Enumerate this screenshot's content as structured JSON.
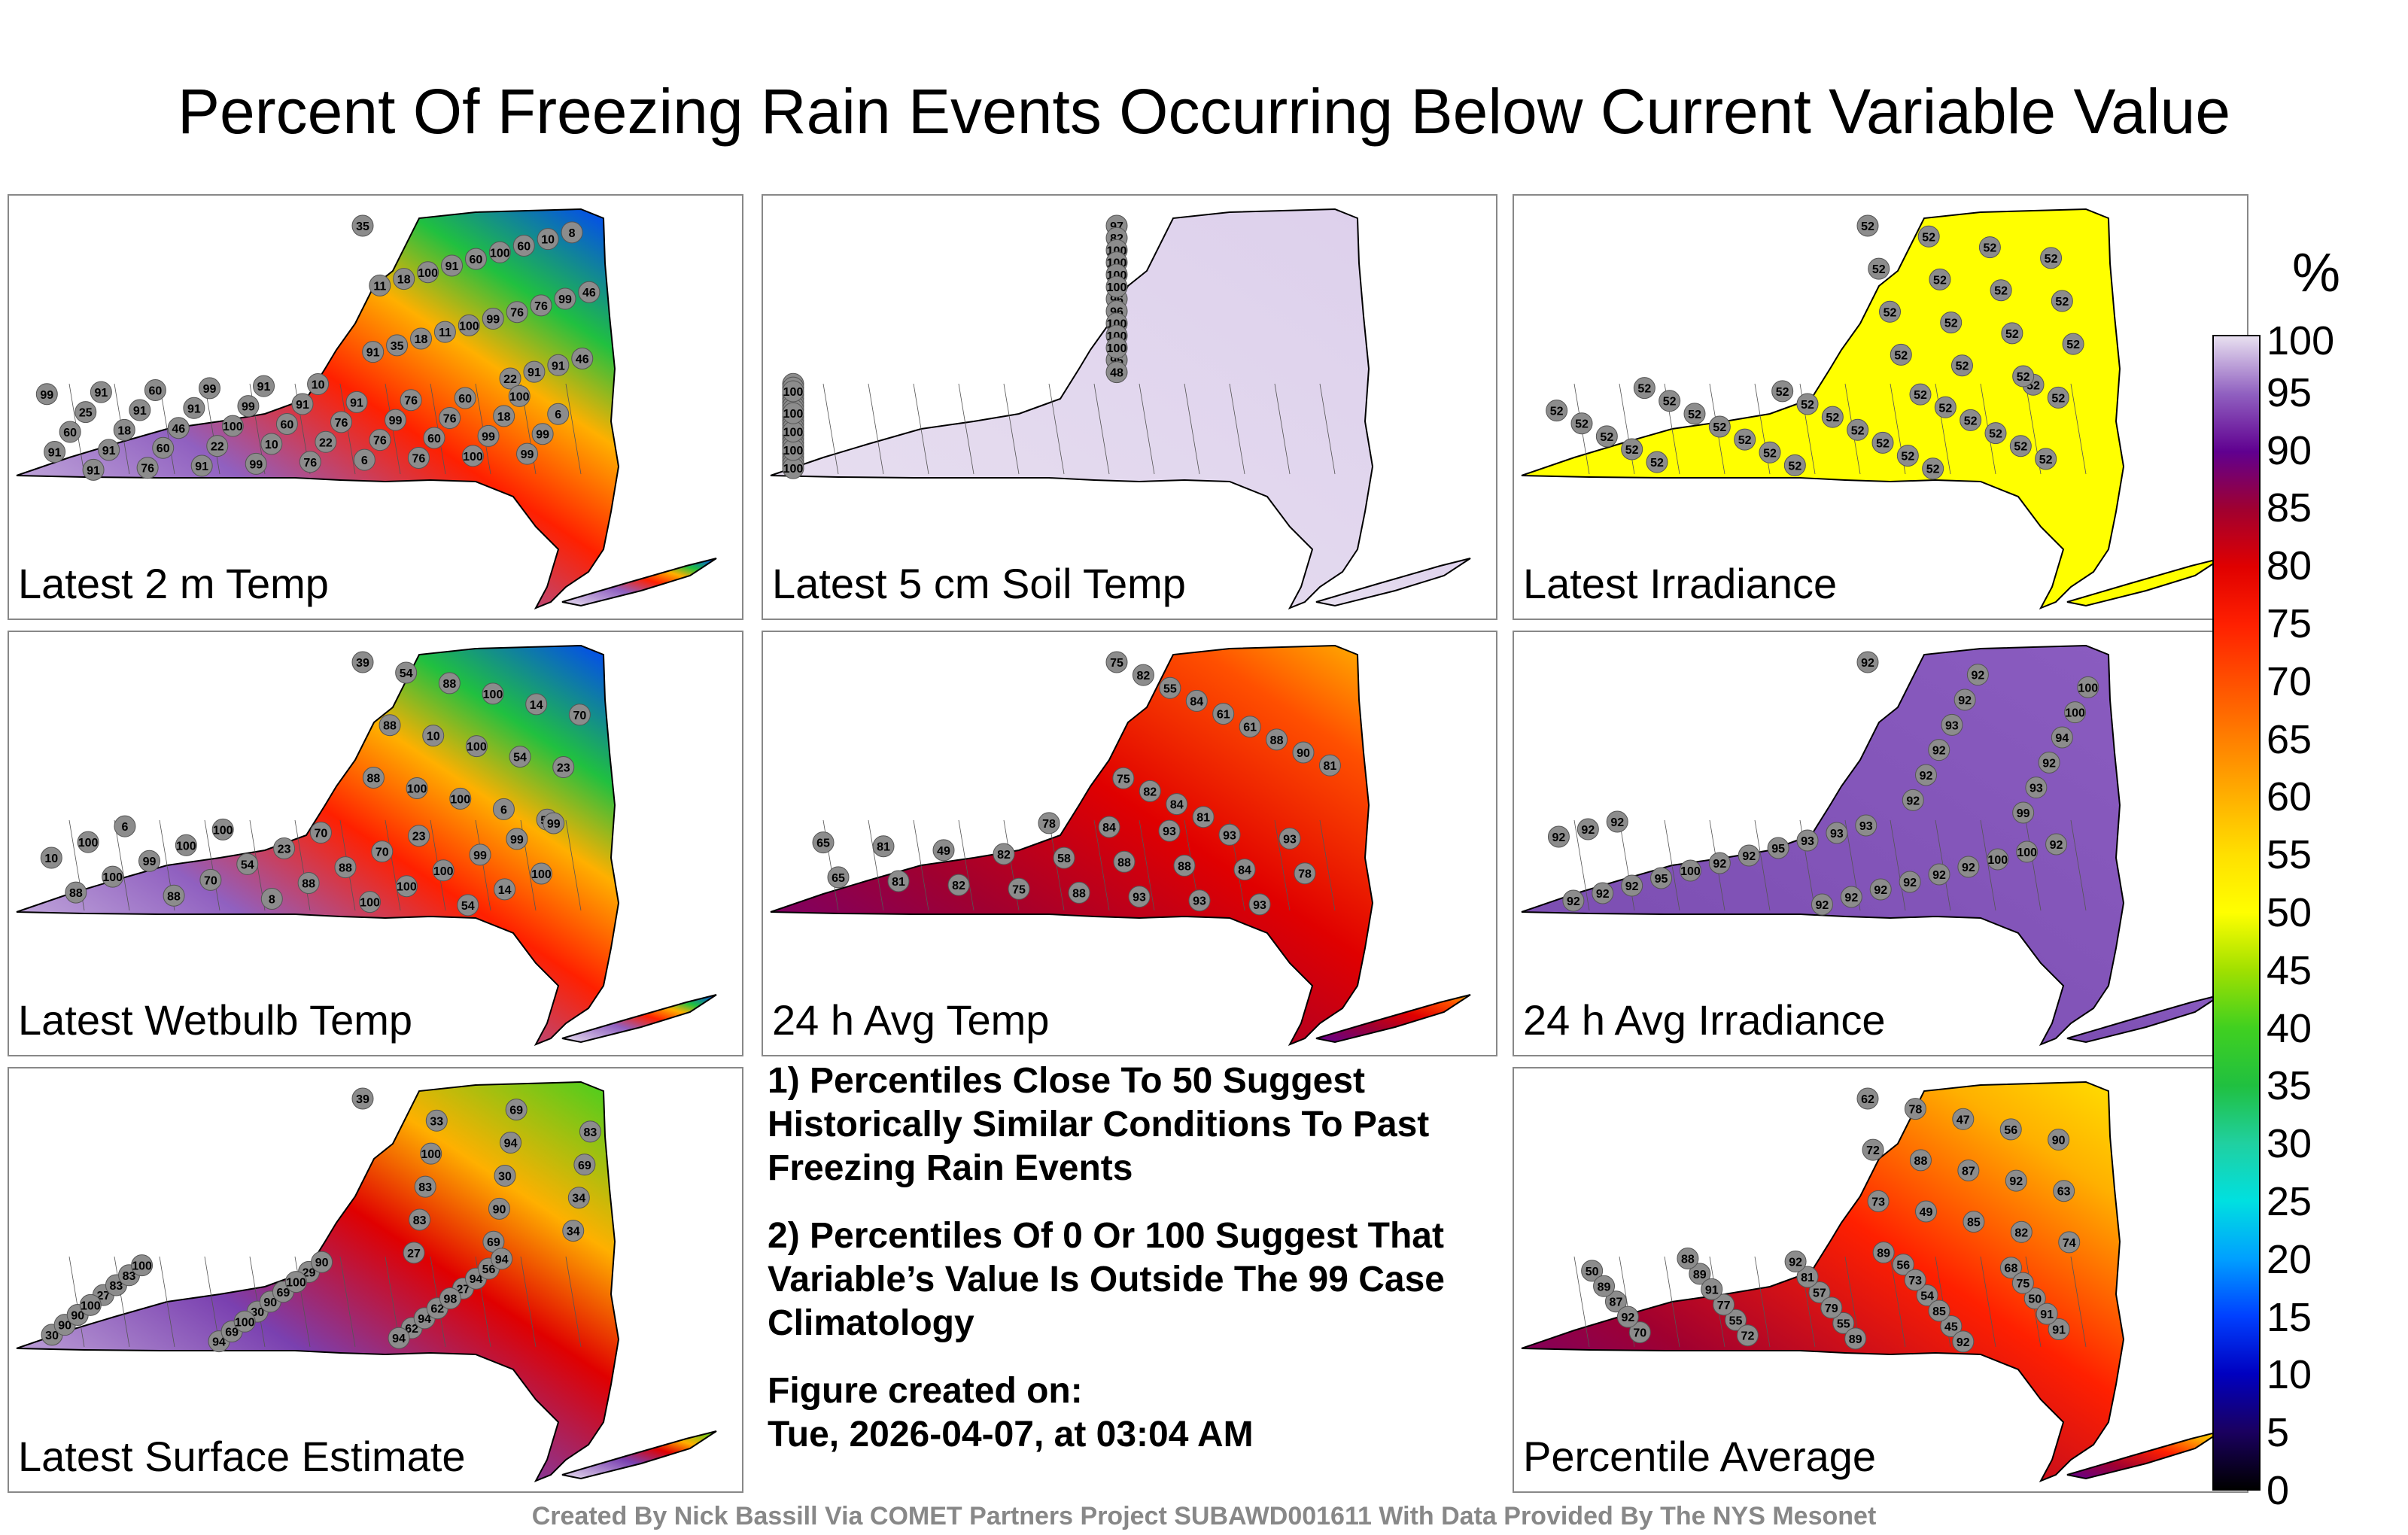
{
  "title": "Percent Of Freezing Rain Events Occurring Below Current Variable Value",
  "colorbar": {
    "unit": "%",
    "ticks": [
      "100",
      "95",
      "90",
      "85",
      "80",
      "75",
      "70",
      "65",
      "60",
      "55",
      "50",
      "45",
      "40",
      "35",
      "30",
      "25",
      "20",
      "15",
      "10",
      "5",
      "0"
    ]
  },
  "panels": [
    {
      "label": "Latest 2 m Temp",
      "fill": "mixed-cold-northeast"
    },
    {
      "label": "Latest 5 cm Soil Temp",
      "fill": "uniform-high"
    },
    {
      "label": "Latest Irradiance",
      "fill": "uniform-yellow"
    },
    {
      "label": "Latest Wetbulb Temp",
      "fill": "mixed-cold-northeast"
    },
    {
      "label": "24 h Avg Temp",
      "fill": "warm-red"
    },
    {
      "label": "24 h Avg Irradiance",
      "fill": "uniform-purple"
    },
    {
      "label": "Latest Surface Estimate",
      "fill": "mixed-green-north"
    },
    {
      "label": "Percentile Average",
      "fill": "orange-red"
    }
  ],
  "notes": {
    "line1": "1) Percentiles Close To 50 Suggest Historically Similar Conditions To Past Freezing Rain Events",
    "line2": "2) Percentiles Of 0 Or 100 Suggest That Variable’s Value Is Outside The 99 Case Climatology",
    "created_label": "Figure created on:",
    "created_value": "Tue, 2026-04-07, at 03:04 AM"
  },
  "credit": "Created By Nick Bassill Via COMET Partners Project SUBAWD001611 With Data Provided By The NYS Mesonet",
  "chart_data": {
    "type": "heatmap",
    "title": "Percent Of Freezing Rain Events Occurring Below Current Variable Value",
    "colorbar_range": [
      0,
      100
    ],
    "colorbar_unit": "%",
    "panels": [
      {
        "name": "Latest 2 m Temp",
        "station_values": [
          35,
          22,
          25,
          22,
          18,
          76,
          46,
          60,
          11,
          8,
          10,
          6,
          10,
          11,
          6,
          18,
          76,
          18,
          10,
          22,
          18,
          91,
          46,
          76,
          60,
          91,
          35,
          60,
          60,
          76,
          99,
          99,
          99,
          99,
          91,
          91,
          100,
          91,
          99,
          60,
          76,
          91,
          99,
          99,
          46,
          60,
          91,
          76,
          91,
          76,
          76,
          60,
          91,
          91,
          91,
          99,
          60,
          99,
          99,
          91,
          76,
          91,
          91,
          100,
          100,
          100,
          100,
          100
        ]
      },
      {
        "name": "Latest 5 cm Soil Temp",
        "station_values": [
          97,
          96,
          95,
          95,
          91,
          96,
          100,
          82,
          97,
          97,
          48,
          96,
          96,
          100,
          100,
          100,
          100,
          100,
          100,
          100,
          100,
          100,
          96,
          100,
          100,
          100,
          100,
          100,
          100,
          100,
          100,
          100,
          100,
          100,
          100,
          100,
          100
        ]
      },
      {
        "name": "Latest Irradiance",
        "station_values": [
          52,
          52,
          52,
          52,
          52,
          52,
          52,
          52,
          52,
          52,
          52,
          52,
          52,
          52,
          52,
          52,
          52,
          52,
          52,
          52,
          52,
          52,
          52,
          52,
          52,
          52,
          52,
          52,
          52,
          52,
          52,
          52,
          52,
          52,
          52,
          52,
          52,
          52,
          52,
          52,
          52,
          52
        ]
      },
      {
        "name": "Latest Wetbulb Temp",
        "station_values": [
          39,
          23,
          23,
          88,
          8,
          10,
          6,
          10,
          14,
          14,
          6,
          23,
          70,
          54,
          88,
          99,
          100,
          100,
          100,
          100,
          99,
          88,
          70,
          54,
          70,
          88,
          88,
          100,
          100,
          100,
          54,
          54,
          70,
          54,
          88,
          88,
          99,
          99,
          100,
          100,
          100,
          100,
          100
        ]
      },
      {
        "name": "24 h Avg Temp",
        "station_values": [
          75,
          65,
          82,
          81,
          55,
          49,
          84,
          82,
          61,
          58,
          61,
          88,
          88,
          88,
          90,
          84,
          81,
          78,
          75,
          65,
          82,
          81,
          84,
          82,
          81,
          75,
          78,
          88,
          84,
          93,
          93,
          93,
          93,
          93,
          93
        ]
      },
      {
        "name": "24 h Avg Irradiance",
        "station_values": [
          92,
          92,
          92,
          92,
          92,
          92,
          92,
          92,
          95,
          92,
          100,
          92,
          92,
          93,
          92,
          92,
          95,
          92,
          93,
          92,
          93,
          92,
          93,
          92,
          99,
          92,
          93,
          92,
          92,
          92,
          94,
          100,
          100,
          100,
          100,
          92
        ]
      },
      {
        "name": "Latest Surface Estimate",
        "station_values": [
          39,
          34,
          27,
          62,
          30,
          29,
          30,
          33,
          27,
          27,
          30,
          34,
          94,
          94,
          94,
          90,
          90,
          94,
          83,
          83,
          90,
          69,
          56,
          62,
          69,
          69,
          69,
          69,
          83,
          83,
          90,
          83,
          94,
          98,
          94,
          90,
          100,
          100,
          100,
          100,
          100
        ]
      },
      {
        "name": "Percentile Average",
        "station_values": [
          62,
          63,
          56,
          57,
          55,
          78,
          73,
          68,
          54,
          55,
          47,
          49,
          50,
          50,
          45,
          56,
          85,
          89,
          87,
          91,
          90,
          82,
          81,
          77,
          70,
          72,
          74,
          73,
          79,
          72,
          88,
          89,
          75,
          85,
          89,
          87,
          88,
          89,
          91,
          92,
          92,
          92,
          91,
          92
        ]
      }
    ]
  }
}
